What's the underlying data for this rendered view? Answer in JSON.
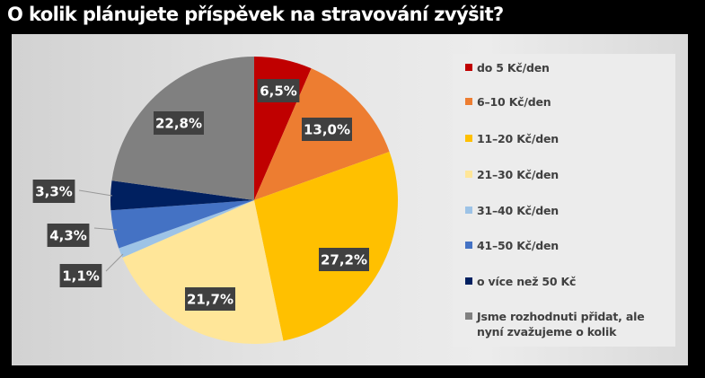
{
  "title": "O kolik plánujete příspěvek na stravování zvýšit?",
  "chart_data": {
    "type": "pie",
    "title": "O kolik plánujete příspěvek na stravování zvýšit?",
    "start_angle": "12 o'clock, clockwise",
    "legend_position": "right",
    "categories": [
      "do 5 Kč/den",
      "6–10 Kč/den",
      "11–20 Kč/den",
      "21–30 Kč/den",
      "31–40 Kč/den",
      "41–50 Kč/den",
      "o více než 50 Kč",
      "Jsme rozhodnuti přidat, ale nyní zvažujeme o kolik"
    ],
    "values": [
      6.5,
      13.0,
      27.2,
      21.7,
      1.1,
      4.3,
      3.3,
      22.8
    ],
    "labels": [
      "6,5%",
      "13,0%",
      "27,2%",
      "21,7%",
      "1,1%",
      "4,3%",
      "3,3%",
      "22,8%"
    ],
    "colors": [
      "#c00000",
      "#ed7d31",
      "#ffc000",
      "#ffe699",
      "#9dc3e6",
      "#4472c4",
      "#002060",
      "#808080"
    ]
  },
  "legend": [
    {
      "label": "do 5 Kč/den",
      "color": "#c00000"
    },
    {
      "label": "6–10 Kč/den",
      "color": "#ed7d31"
    },
    {
      "label": "11–20 Kč/den",
      "color": "#ffc000"
    },
    {
      "label": "21–30 Kč/den",
      "color": "#ffe699"
    },
    {
      "label": "31–40 Kč/den",
      "color": "#9dc3e6"
    },
    {
      "label": "41–50 Kč/den",
      "color": "#4472c4"
    },
    {
      "label": "o více než 50 Kč",
      "color": "#002060"
    },
    {
      "label": "Jsme rozhodnuti přidat, ale nyní zvažujeme o kolik",
      "color": "#808080"
    }
  ]
}
